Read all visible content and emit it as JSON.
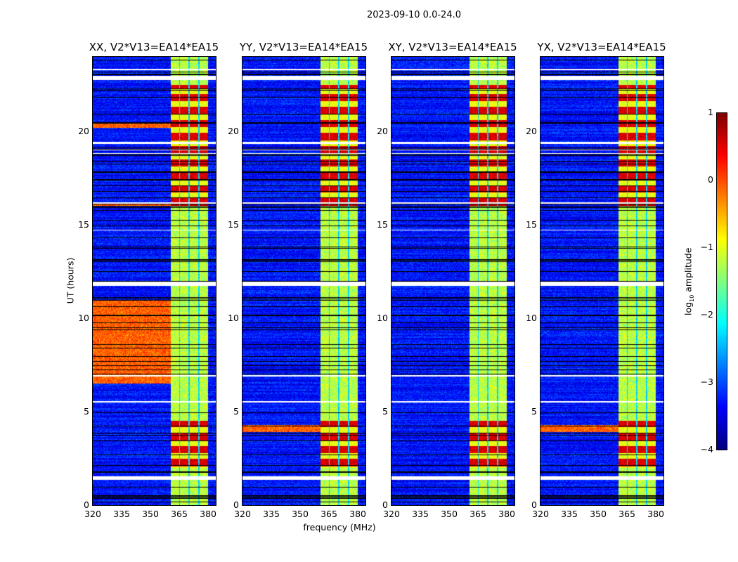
{
  "suptitle": "2023-09-10 0.0-24.0",
  "chart_data": {
    "type": "heatmap",
    "xlabel": "frequency (MHz)",
    "ylabel": "UT (hours)",
    "xlim": [
      320,
      384
    ],
    "ylim": [
      0,
      24
    ],
    "xticks": [
      "320",
      "335",
      "350",
      "365",
      "380"
    ],
    "yticks": [
      "0",
      "5",
      "10",
      "15",
      "20"
    ],
    "panels": [
      {
        "title": "XX, V2*V13=EA14*EA15",
        "rfi_hours_strong": [
          [
            2,
            4.5
          ],
          [
            16,
            22.5
          ]
        ],
        "broadband_rfi_hours": [
          [
            6.5,
            11
          ],
          [
            16,
            16.1
          ],
          [
            20.2,
            20.5
          ]
        ]
      },
      {
        "title": "YY, V2*V13=EA14*EA15",
        "rfi_hours_strong": [
          [
            2,
            4.5
          ],
          [
            16,
            22.5
          ]
        ],
        "broadband_rfi_hours": [
          [
            3.9,
            4.3
          ]
        ]
      },
      {
        "title": "XY, V2*V13=EA14*EA15",
        "rfi_hours_strong": [
          [
            2,
            4.5
          ],
          [
            16,
            22.5
          ]
        ],
        "broadband_rfi_hours": []
      },
      {
        "title": "YX, V2*V13=EA14*EA15",
        "rfi_hours_strong": [
          [
            2,
            4.5
          ],
          [
            16,
            22.5
          ]
        ],
        "broadband_rfi_hours": [
          [
            3.9,
            4.3
          ]
        ]
      }
    ],
    "rfi_band_mhz": [
      360.5,
      380
    ],
    "flagged_hours": [
      [
        1.35,
        1.55
      ],
      [
        11.75,
        11.95
      ],
      [
        22.75,
        23.0
      ],
      [
        23.3,
        23.35
      ],
      [
        19.35,
        19.45
      ],
      [
        19.0,
        19.05
      ],
      [
        18.8,
        18.85
      ],
      [
        16.15,
        16.2
      ],
      [
        14.7,
        14.75
      ],
      [
        5.5,
        5.55
      ],
      [
        6.9,
        6.95
      ]
    ],
    "colorbar": {
      "label": "log10 amplitude",
      "label_main": "log",
      "label_sub": "10",
      "label_rest": " amplitude",
      "range": [
        -4,
        1
      ],
      "ticks": [
        "1",
        "0",
        "−1",
        "−2",
        "−3",
        "−4"
      ],
      "colormap": "jet"
    }
  }
}
